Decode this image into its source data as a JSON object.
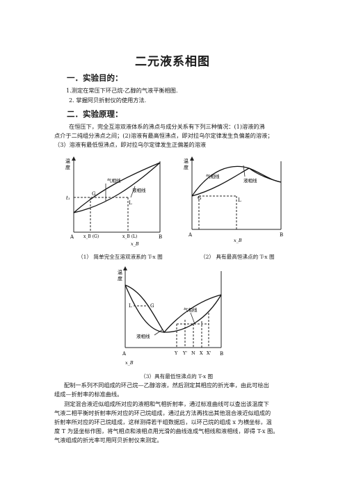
{
  "title": "二元液系相图",
  "section1": {
    "heading": "一．实验目的：",
    "items": [
      "1.测定在常压下环己烷-乙醇的气液平衡相图.",
      "2. 掌握阿贝折射仪的使用方法."
    ]
  },
  "section2": {
    "heading": "二．实验原理：",
    "intro": [
      "在恒压下，完全互溶双液体系的沸点与成分关系有下列三种情况：(1)溶液的沸",
      "点介于二纯组分沸点之间；(2)溶液有最高恒沸点，即对拉乌尔定律发生负偏差的溶液；",
      "（3）溶液有最低恒沸点，即对拉乌尔定律发生正偏差的溶液"
    ]
  },
  "fig1": {
    "caption": "（1）  简单完全互溶双液系的 T-x 图",
    "ylabel": [
      "温",
      "度"
    ],
    "t_label": "t₁",
    "vapor": "气相线",
    "liquid": "液相线",
    "G": "G",
    "L": "L",
    "A": "A",
    "B": "B",
    "xg": "x_B (G)",
    "xl": "x_B (L)",
    "xaxis": "x_B"
  },
  "fig2": {
    "caption": "（2）  具有最高恒沸点的 T-x 图",
    "ylabel": [
      "温",
      "度"
    ],
    "vapor": "气相线",
    "liquid": "液相线",
    "G": "G",
    "L": "L",
    "A": "A",
    "B": "B",
    "xaxis": "x_B"
  },
  "fig3": {
    "caption": "（3）具有最低恒沸点的 T-x 图",
    "ylabel": [
      "温",
      "度"
    ],
    "vapor": "气相线",
    "liquid": "液相线",
    "L": "L",
    "G": "G",
    "A": "A",
    "B": "B",
    "Y": "Y",
    "Yp": "Y'",
    "N": "N",
    "X": "X",
    "Xp": "X'",
    "xaxis": "x_B"
  },
  "body": [
    "配制一系列不同组成的环己烷—乙醇溶液，然后测定其相应的折光率，由此可绘出",
    "组成—折射率的标准曲线。",
    "测定混合液近似组成所对应的液相和气相折射率，通过标准曲线可以查出该温度下",
    "气液二相平衡时折射率所对应的环己烷组成，通过此方法再找出其他混合液近似组成的",
    "折射率所对应的环己烷组成，这样测得若干组数据后，以环己烷的组成 x 为横坐标，温",
    "度 T 为竖坐标作图，将气相点和液相点用光滑的曲线连成气相线和液相线，即得 T-x 图。",
    "气液组成的折光率可用阿贝折射仪来测定。"
  ]
}
